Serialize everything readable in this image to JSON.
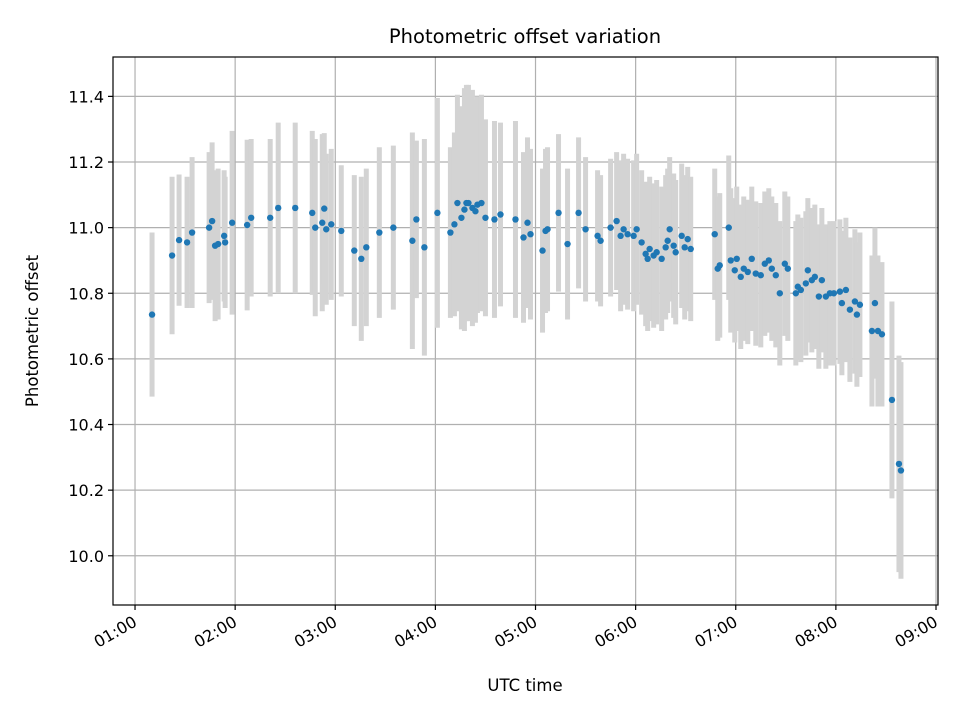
{
  "chart_data": {
    "type": "scatter",
    "title": "Photometric offset variation",
    "xlabel": "UTC time",
    "ylabel": "Photometric offset",
    "x_unit": "UTC hours",
    "xlim": [
      0.78,
      9.02
    ],
    "ylim": [
      9.85,
      11.52
    ],
    "grid": true,
    "colors": {
      "point": "#1f77b4",
      "errorbar": "#d3d3d3",
      "grid": "#b0b0b0",
      "axis": "#000000"
    },
    "x_ticks": [
      {
        "value": 1,
        "label": "01:00"
      },
      {
        "value": 2,
        "label": "02:00"
      },
      {
        "value": 3,
        "label": "03:00"
      },
      {
        "value": 4,
        "label": "04:00"
      },
      {
        "value": 5,
        "label": "05:00"
      },
      {
        "value": 6,
        "label": "06:00"
      },
      {
        "value": 7,
        "label": "07:00"
      },
      {
        "value": 8,
        "label": "08:00"
      },
      {
        "value": 9,
        "label": "09:00"
      }
    ],
    "y_ticks": [
      {
        "value": 10.0,
        "label": "10.0"
      },
      {
        "value": 10.2,
        "label": "10.2"
      },
      {
        "value": 10.4,
        "label": "10.4"
      },
      {
        "value": 10.6,
        "label": "10.6"
      },
      {
        "value": 10.8,
        "label": "10.8"
      },
      {
        "value": 11.0,
        "label": "11.0"
      },
      {
        "value": 11.2,
        "label": "11.2"
      },
      {
        "value": 11.4,
        "label": "11.4"
      }
    ],
    "points": [
      [
        1.17,
        10.735,
        0.25
      ],
      [
        1.37,
        10.915,
        0.24
      ],
      [
        1.44,
        10.962,
        0.2
      ],
      [
        1.52,
        10.955,
        0.2
      ],
      [
        1.57,
        10.985,
        0.23
      ],
      [
        1.74,
        11.0,
        0.23
      ],
      [
        1.77,
        11.02,
        0.24
      ],
      [
        1.8,
        10.945,
        0.23
      ],
      [
        1.83,
        10.95,
        0.23
      ],
      [
        1.89,
        10.975,
        0.2
      ],
      [
        1.9,
        10.955,
        0.2
      ],
      [
        1.97,
        11.015,
        0.28
      ],
      [
        2.12,
        11.008,
        0.26
      ],
      [
        2.16,
        11.03,
        0.24
      ],
      [
        2.35,
        11.03,
        0.24
      ],
      [
        2.43,
        11.06,
        0.26
      ],
      [
        2.6,
        11.06,
        0.26
      ],
      [
        2.77,
        11.045,
        0.25
      ],
      [
        2.8,
        11.0,
        0.27
      ],
      [
        2.87,
        11.015,
        0.27
      ],
      [
        2.89,
        11.058,
        0.23
      ],
      [
        2.91,
        10.995,
        0.23
      ],
      [
        2.96,
        11.01,
        0.23
      ],
      [
        3.06,
        10.99,
        0.2
      ],
      [
        3.19,
        10.93,
        0.23
      ],
      [
        3.26,
        10.905,
        0.25
      ],
      [
        3.31,
        10.94,
        0.24
      ],
      [
        3.44,
        10.985,
        0.26
      ],
      [
        3.58,
        11.0,
        0.25
      ],
      [
        3.77,
        10.96,
        0.33
      ],
      [
        3.81,
        11.025,
        0.24
      ],
      [
        3.89,
        10.94,
        0.33
      ],
      [
        4.02,
        11.045,
        0.35
      ],
      [
        4.15,
        10.985,
        0.26
      ],
      [
        4.19,
        11.01,
        0.28
      ],
      [
        4.22,
        11.075,
        0.33
      ],
      [
        4.26,
        11.03,
        0.34
      ],
      [
        4.29,
        11.055,
        0.37
      ],
      [
        4.31,
        11.075,
        0.36
      ],
      [
        4.33,
        11.075,
        0.36
      ],
      [
        4.37,
        11.06,
        0.36
      ],
      [
        4.4,
        11.05,
        0.34
      ],
      [
        4.42,
        11.07,
        0.33
      ],
      [
        4.46,
        11.075,
        0.33
      ],
      [
        4.5,
        11.03,
        0.3
      ],
      [
        4.59,
        11.025,
        0.3
      ],
      [
        4.65,
        11.04,
        0.28
      ],
      [
        4.8,
        11.025,
        0.3
      ],
      [
        4.88,
        10.97,
        0.26
      ],
      [
        4.92,
        11.015,
        0.26
      ],
      [
        4.95,
        10.98,
        0.26
      ],
      [
        5.07,
        10.93,
        0.25
      ],
      [
        5.1,
        10.99,
        0.25
      ],
      [
        5.12,
        10.995,
        0.25
      ],
      [
        5.23,
        11.045,
        0.24
      ],
      [
        5.32,
        10.95,
        0.23
      ],
      [
        5.43,
        11.045,
        0.23
      ],
      [
        5.5,
        10.995,
        0.22
      ],
      [
        5.62,
        10.975,
        0.2
      ],
      [
        5.65,
        10.96,
        0.2
      ],
      [
        5.75,
        11.0,
        0.21
      ],
      [
        5.81,
        11.02,
        0.21
      ],
      [
        5.85,
        10.975,
        0.23
      ],
      [
        5.88,
        10.995,
        0.23
      ],
      [
        5.92,
        10.98,
        0.23
      ],
      [
        5.98,
        10.975,
        0.23
      ],
      [
        6.01,
        10.995,
        0.23
      ],
      [
        6.06,
        10.955,
        0.22
      ],
      [
        6.1,
        10.92,
        0.22
      ],
      [
        6.12,
        10.905,
        0.22
      ],
      [
        6.14,
        10.935,
        0.22
      ],
      [
        6.18,
        10.915,
        0.22
      ],
      [
        6.21,
        10.925,
        0.22
      ],
      [
        6.26,
        10.905,
        0.22
      ],
      [
        6.3,
        10.94,
        0.22
      ],
      [
        6.32,
        10.96,
        0.22
      ],
      [
        6.34,
        10.995,
        0.22
      ],
      [
        6.38,
        10.945,
        0.22
      ],
      [
        6.4,
        10.925,
        0.22
      ],
      [
        6.46,
        10.975,
        0.22
      ],
      [
        6.49,
        10.94,
        0.22
      ],
      [
        6.52,
        10.965,
        0.22
      ],
      [
        6.55,
        10.935,
        0.22
      ],
      [
        6.79,
        10.98,
        0.2
      ],
      [
        6.82,
        10.875,
        0.22
      ],
      [
        6.84,
        10.885,
        0.22
      ],
      [
        6.93,
        11.0,
        0.22
      ],
      [
        6.95,
        10.9,
        0.22
      ],
      [
        6.99,
        10.87,
        0.22
      ],
      [
        7.01,
        10.905,
        0.22
      ],
      [
        7.05,
        10.85,
        0.22
      ],
      [
        7.08,
        10.875,
        0.22
      ],
      [
        7.12,
        10.865,
        0.22
      ],
      [
        7.16,
        10.905,
        0.22
      ],
      [
        7.2,
        10.86,
        0.22
      ],
      [
        7.25,
        10.855,
        0.22
      ],
      [
        7.29,
        10.89,
        0.22
      ],
      [
        7.33,
        10.9,
        0.22
      ],
      [
        7.36,
        10.875,
        0.22
      ],
      [
        7.4,
        10.855,
        0.22
      ],
      [
        7.44,
        10.8,
        0.22
      ],
      [
        7.49,
        10.89,
        0.22
      ],
      [
        7.52,
        10.875,
        0.22
      ],
      [
        7.6,
        10.8,
        0.22
      ],
      [
        7.62,
        10.82,
        0.22
      ],
      [
        7.65,
        10.81,
        0.22
      ],
      [
        7.7,
        10.83,
        0.22
      ],
      [
        7.72,
        10.87,
        0.22
      ],
      [
        7.76,
        10.84,
        0.22
      ],
      [
        7.79,
        10.85,
        0.22
      ],
      [
        7.83,
        10.79,
        0.22
      ],
      [
        7.86,
        10.84,
        0.22
      ],
      [
        7.9,
        10.79,
        0.22
      ],
      [
        7.94,
        10.8,
        0.22
      ],
      [
        7.98,
        10.8,
        0.22
      ],
      [
        8.04,
        10.805,
        0.22
      ],
      [
        8.06,
        10.77,
        0.22
      ],
      [
        8.1,
        10.81,
        0.22
      ],
      [
        8.14,
        10.75,
        0.22
      ],
      [
        8.19,
        10.775,
        0.22
      ],
      [
        8.21,
        10.735,
        0.22
      ],
      [
        8.24,
        10.765,
        0.22
      ],
      [
        8.36,
        10.685,
        0.23
      ],
      [
        8.39,
        10.77,
        0.23
      ],
      [
        8.42,
        10.685,
        0.23
      ],
      [
        8.46,
        10.675,
        0.22
      ],
      [
        8.56,
        10.475,
        0.3
      ],
      [
        8.63,
        10.28,
        0.33
      ],
      [
        8.65,
        10.26,
        0.33
      ]
    ]
  }
}
